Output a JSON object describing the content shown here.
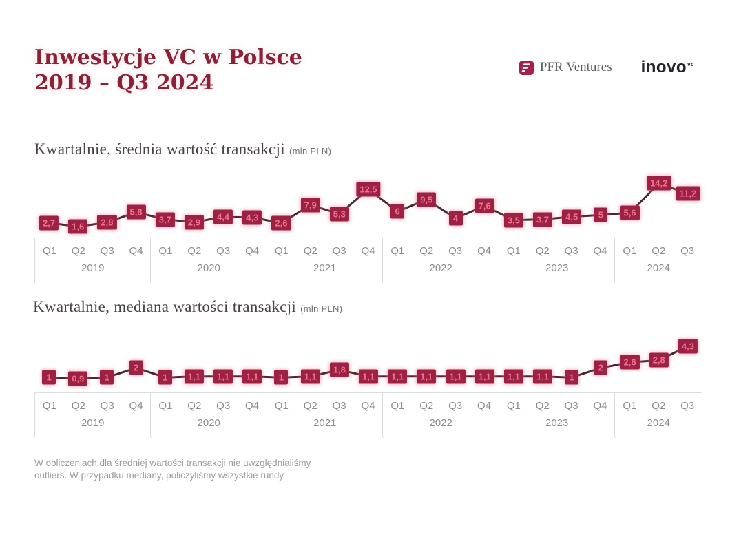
{
  "header": {
    "title_line1": "Inwestycje VC w Polsce",
    "title_line2": "2019 – Q3 2024"
  },
  "logos": {
    "pfr_label": "PFR Ventures",
    "inovo_label": "inovo",
    "inovo_superscript": "vc"
  },
  "footnote": {
    "text": "W obliczeniach dla średniej wartości transakcji nie uwzględnialiśmy outliers. W przypadku mediany, policzyliśmy wszystkie rundy"
  },
  "colors": {
    "box_fill": "#9C2143",
    "box_text": "#F0718C",
    "line": "#4A2430",
    "title": "#8B2137",
    "axis_text": "#8C8C8C",
    "grid": "#DCDCDC"
  },
  "chart_data": [
    {
      "type": "line",
      "title": "Kwartalnie, średnia wartość transakcji",
      "unit": "(mln PLN)",
      "ylabel": "mln PLN",
      "ylim": [
        0,
        14.5
      ],
      "grid": "off",
      "legend": "none",
      "years": [
        {
          "label": "2019",
          "quarters": [
            "Q1",
            "Q2",
            "Q3",
            "Q4"
          ]
        },
        {
          "label": "2020",
          "quarters": [
            "Q1",
            "Q2",
            "Q3",
            "Q4"
          ]
        },
        {
          "label": "2021",
          "quarters": [
            "Q1",
            "Q2",
            "Q3",
            "Q4"
          ]
        },
        {
          "label": "2022",
          "quarters": [
            "Q1",
            "Q2",
            "Q3",
            "Q4"
          ]
        },
        {
          "label": "2023",
          "quarters": [
            "Q1",
            "Q2",
            "Q3",
            "Q4"
          ]
        },
        {
          "label": "2024",
          "quarters": [
            "Q1",
            "Q2",
            "Q3"
          ]
        }
      ],
      "values": [
        2.7,
        1.6,
        2.8,
        5.8,
        3.7,
        2.9,
        4.4,
        4.3,
        2.6,
        7.9,
        5.3,
        12.5,
        6,
        9.5,
        4,
        7.6,
        3.5,
        3.7,
        4.5,
        5,
        5.6,
        14.2,
        11.2
      ],
      "labels": [
        "2,7",
        "1,6",
        "2,8",
        "5,8",
        "3,7",
        "2,9",
        "4,4",
        "4,3",
        "2,6",
        "7,9",
        "5,3",
        "12,5",
        "6",
        "9,5",
        "4",
        "7,6",
        "3,5",
        "3,7",
        "4,5",
        "5",
        "5,6",
        "14,2",
        "11,2"
      ]
    },
    {
      "type": "line",
      "title": "Kwartalnie, mediana wartości transakcji",
      "unit": "(mln PLN)",
      "ylabel": "mln PLN",
      "ylim": [
        0,
        4.5
      ],
      "grid": "off",
      "legend": "none",
      "years": [
        {
          "label": "2019",
          "quarters": [
            "Q1",
            "Q2",
            "Q3",
            "Q4"
          ]
        },
        {
          "label": "2020",
          "quarters": [
            "Q1",
            "Q2",
            "Q3",
            "Q4"
          ]
        },
        {
          "label": "2021",
          "quarters": [
            "Q1",
            "Q2",
            "Q3",
            "Q4"
          ]
        },
        {
          "label": "2022",
          "quarters": [
            "Q1",
            "Q2",
            "Q3",
            "Q4"
          ]
        },
        {
          "label": "2023",
          "quarters": [
            "Q1",
            "Q2",
            "Q3",
            "Q4"
          ]
        },
        {
          "label": "2024",
          "quarters": [
            "Q1",
            "Q2",
            "Q3"
          ]
        }
      ],
      "values": [
        1,
        0.9,
        1,
        2,
        1,
        1.1,
        1.1,
        1.1,
        1,
        1.1,
        1.8,
        1.1,
        1.1,
        1.1,
        1.1,
        1.1,
        1.1,
        1.1,
        1,
        2,
        2.6,
        2.8,
        4.3
      ],
      "labels": [
        "1",
        "0,9",
        "1",
        "2",
        "1",
        "1,1",
        "1,1",
        "1,1",
        "1",
        "1,1",
        "1,8",
        "1,1",
        "1,1",
        "1,1",
        "1,1",
        "1,1",
        "1,1",
        "1,1",
        "1",
        "2",
        "2,6",
        "2,8",
        "4,3"
      ]
    }
  ]
}
